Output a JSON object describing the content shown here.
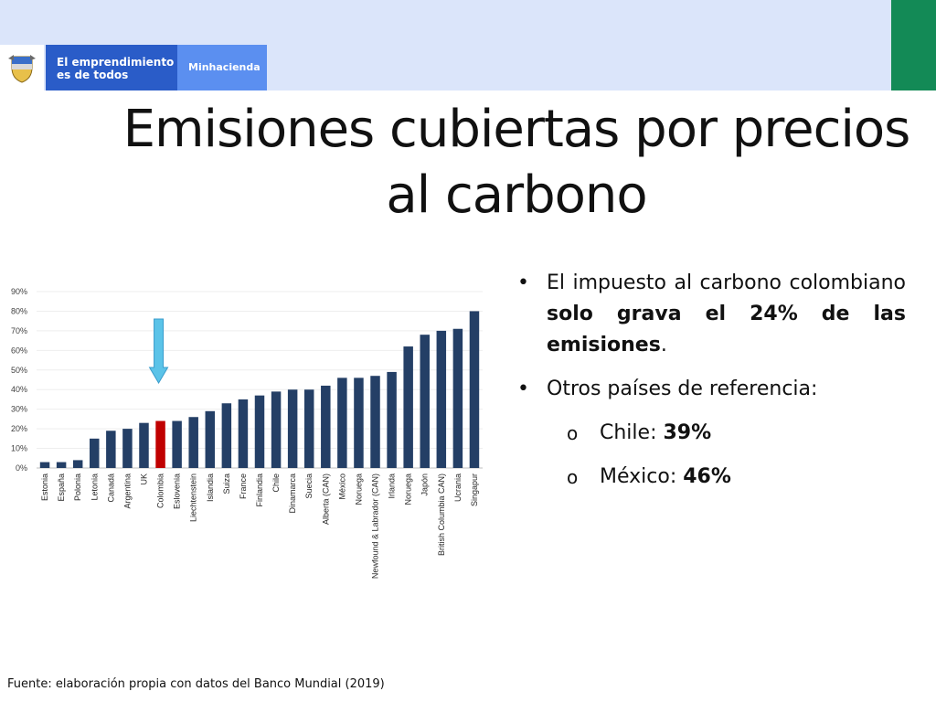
{
  "header": {
    "logo_line1": "El emprendimiento",
    "logo_line2": "es de todos",
    "ministry": "Minhacienda"
  },
  "title": "Emisiones cubiertas por precios al carbono",
  "bullets": {
    "b1_part1": "El impuesto al carbono colombiano ",
    "b1_bold": "solo grava el 24% de las emisiones",
    "b1_end": ".",
    "b2": "Otros países de referencia:",
    "chile_label": "Chile: ",
    "chile_value": "39%",
    "mexico_label": "México: ",
    "mexico_value": "46%"
  },
  "source": "Fuente: elaboración propia con datos del Banco Mundial (2019)",
  "colors": {
    "bar": "#243f66",
    "highlight": "#c00000",
    "arrow": "#5bc3e8"
  },
  "chart_data": {
    "type": "bar",
    "categories": [
      "Estonia",
      "España",
      "Polonia",
      "Letonia",
      "Canadá",
      "Argentina",
      "UK",
      "Colombia",
      "Eslovenia",
      "Liechtenstein",
      "Islandia",
      "Suiza",
      "France",
      "Finlandia",
      "Chile",
      "Dinamarca",
      "Suecia",
      "Alberta (CAN)",
      "México",
      "Noruega",
      "Newfound & Labrador (CAN)",
      "Irlanda",
      "Noruega",
      "Japón",
      "British Columbia CAN)",
      "Ucrania",
      "Singapur"
    ],
    "values": [
      3,
      3,
      4,
      15,
      19,
      20,
      23,
      24,
      24,
      26,
      29,
      33,
      35,
      37,
      39,
      40,
      40,
      42,
      46,
      46,
      47,
      49,
      62,
      68,
      70,
      71,
      80
    ],
    "highlight": "Colombia",
    "ylim": [
      0,
      90
    ],
    "yticks": [
      "0%",
      "10%",
      "20%",
      "30%",
      "40%",
      "50%",
      "60%",
      "70%",
      "80%",
      "90%"
    ],
    "grid": true
  }
}
